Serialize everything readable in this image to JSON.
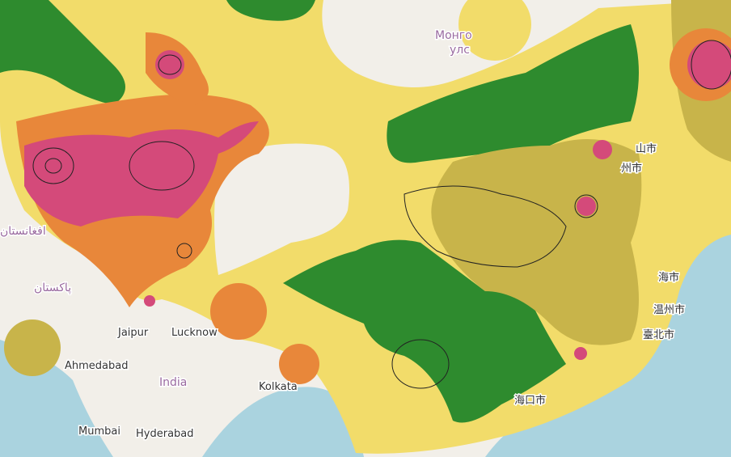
{
  "places": [
    {
      "label": "Монго"
    },
    {
      "label": "улс"
    },
    {
      "label": "افغانستان"
    },
    {
      "label": "پاکستان"
    },
    {
      "label": "Jaipur"
    },
    {
      "label": "Lucknow"
    },
    {
      "label": "Ahmedabad"
    },
    {
      "label": "India"
    },
    {
      "label": "Kolkata"
    },
    {
      "label": "Mumbai"
    },
    {
      "label": "Hyderabad"
    },
    {
      "label": "海口市"
    },
    {
      "label": "山市"
    },
    {
      "label": "州市"
    },
    {
      "label": "海市"
    },
    {
      "label": "温州市"
    },
    {
      "label": "臺北市"
    }
  ]
}
